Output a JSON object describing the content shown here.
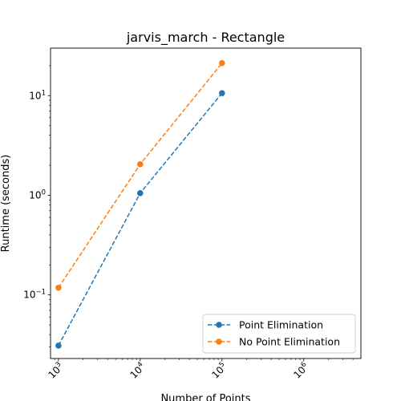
{
  "chart_data": {
    "type": "line",
    "title": "jarvis_march - Rectangle",
    "xlabel": "Number of Points",
    "ylabel": "Runtime (seconds)",
    "xscale": "log",
    "yscale": "log",
    "xlim": [
      800,
      5000000
    ],
    "ylim": [
      0.023,
      30
    ],
    "x_ticks": [
      {
        "base": "10",
        "exp": "3",
        "value": 1000
      },
      {
        "base": "10",
        "exp": "4",
        "value": 10000
      },
      {
        "base": "10",
        "exp": "5",
        "value": 100000
      },
      {
        "base": "10",
        "exp": "6",
        "value": 1000000
      }
    ],
    "y_ticks": [
      {
        "base": "10",
        "exp": "−1",
        "value": 0.1
      },
      {
        "base": "10",
        "exp": "0",
        "value": 1
      },
      {
        "base": "10",
        "exp": "1",
        "value": 10
      }
    ],
    "x": [
      1000,
      10000,
      100000
    ],
    "series": [
      {
        "name": "Point Elimination",
        "values": [
          0.031,
          1.05,
          10.6
        ],
        "color": "#1f77b4"
      },
      {
        "name": "No Point Elimination",
        "values": [
          0.118,
          2.05,
          21.2
        ],
        "color": "#ff7f0e"
      }
    ],
    "legend_position": "lower-right",
    "grid": false,
    "line_style": "dashed",
    "marker": "circle"
  }
}
